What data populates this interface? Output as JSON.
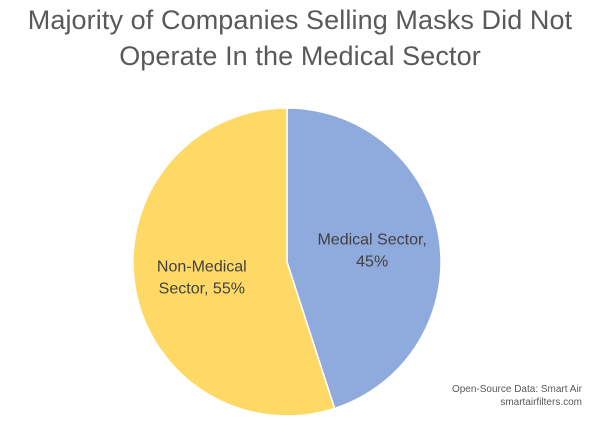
{
  "chart_data": {
    "type": "pie",
    "title_lines": [
      "Majority of Companies Selling Masks Did Not",
      "Operate In the Medical Sector"
    ],
    "slices": [
      {
        "name": "Medical Sector",
        "value": 45,
        "label_lines": [
          "Medical Sector,",
          "45%"
        ],
        "color": "#8FAADC"
      },
      {
        "name": "Non-Medical Sector",
        "value": 55,
        "label_lines": [
          "Non-Medical",
          "Sector, 55%"
        ],
        "color": "#FFD966"
      }
    ],
    "start": "12 o'clock",
    "direction": "clockwise",
    "slice_separator_color": "#ffffff",
    "source_lines": [
      "Open-Source Data: Smart Air",
      "smartairfilters.com"
    ]
  }
}
